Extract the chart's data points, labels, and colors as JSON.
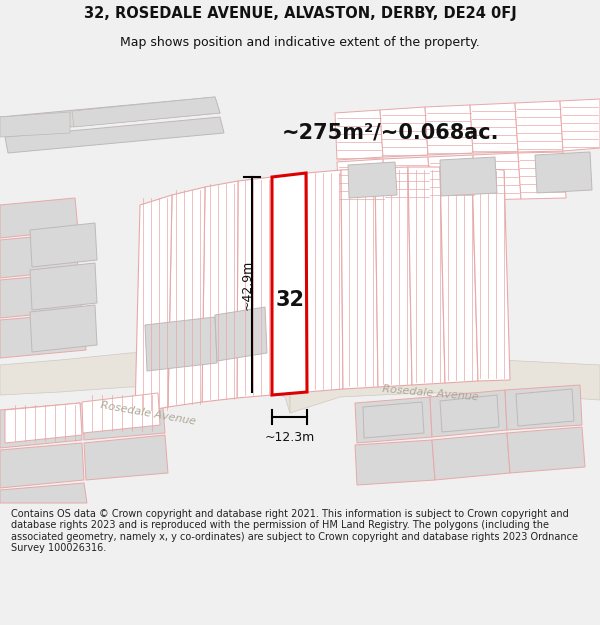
{
  "title_line1": "32, ROSEDALE AVENUE, ALVASTON, DERBY, DE24 0FJ",
  "title_line2": "Map shows position and indicative extent of the property.",
  "footer_text": "Contains OS data © Crown copyright and database right 2021. This information is subject to Crown copyright and database rights 2023 and is reproduced with the permission of HM Land Registry. The polygons (including the associated geometry, namely x, y co-ordinates) are subject to Crown copyright and database rights 2023 Ordnance Survey 100026316.",
  "area_label": "~275m²/~0.068ac.",
  "width_label": "~12.3m",
  "height_label": "~42.9m",
  "plot_number": "32",
  "bg_color": "#f0f0f0",
  "map_bg": "#ffffff",
  "gray_fill": "#d8d8d8",
  "gray_edge": "#c0b8b8",
  "pink": "#e8a8a8",
  "lt_pink": "#f0c8c8",
  "road_fill": "#e8e4dc",
  "road_edge": "#d0c8be",
  "subject_fill": "#ffffff",
  "subject_edge": "#dd0000",
  "dim_color": "#111111",
  "road_label_color": "#b0a898",
  "title_fontsize": 10.5,
  "subtitle_fontsize": 9,
  "footer_fontsize": 7.0,
  "area_fontsize": 15
}
